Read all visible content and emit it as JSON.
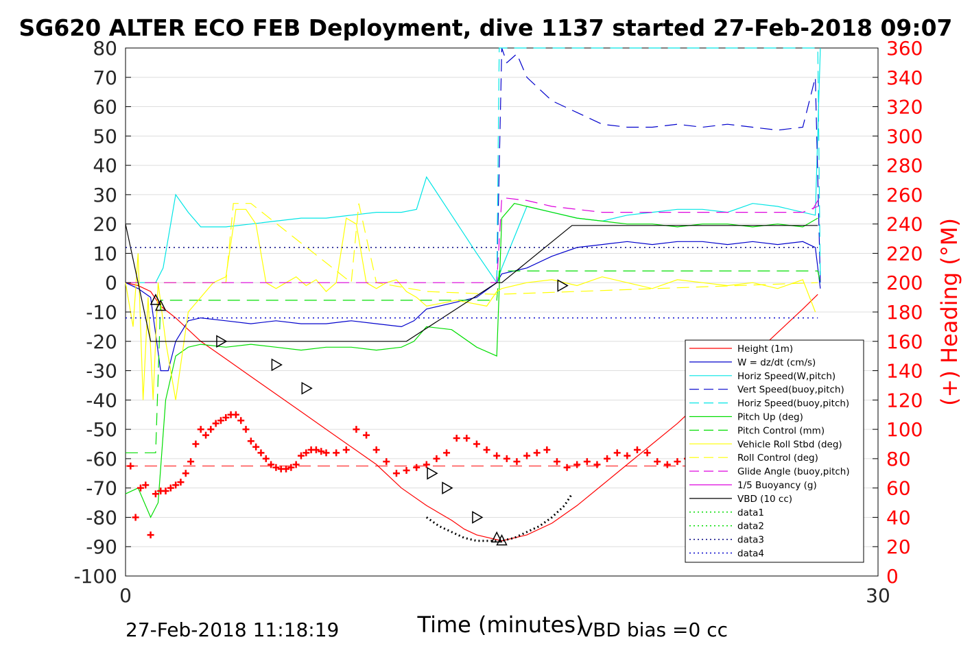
{
  "chart_data": {
    "type": "line",
    "title": "SG620 ALTER ECO FEB Deployment, dive 1137 started 27-Feb-2018 09:07",
    "xlabel": "Time (minutes)",
    "ylabel_right": "(+) Heading (°M)",
    "xlim": [
      0,
      30
    ],
    "ylim_left": [
      -100,
      80
    ],
    "ylim_right": [
      0,
      360
    ],
    "xticks": [
      "0",
      "30"
    ],
    "yticks_left": [
      "80",
      "70",
      "60",
      "50",
      "40",
      "30",
      "20",
      "10",
      "0",
      "-10",
      "-20",
      "-30",
      "-40",
      "-50",
      "-60",
      "-70",
      "-80",
      "-90",
      "-100"
    ],
    "yticks_right": [
      "360",
      "340",
      "320",
      "300",
      "280",
      "260",
      "240",
      "220",
      "200",
      "180",
      "160",
      "140",
      "120",
      "100",
      "80",
      "60",
      "40",
      "20",
      "0"
    ],
    "grid": true,
    "legend_position": "lower-right",
    "footer_left": "27-Feb-2018 11:18:19",
    "footer_right": "VBD bias =0 cc",
    "colors": {
      "right_axis": "#ff0000"
    },
    "legend": [
      {
        "label": "Height (1m)",
        "color": "#ff0000",
        "style": "solid"
      },
      {
        "label": "W = dz/dt (cm/s)",
        "color": "#0000cc",
        "style": "solid"
      },
      {
        "label": "Horiz Speed(W,pitch)",
        "color": "#00e5e5",
        "style": "solid"
      },
      {
        "label": "Vert Speed(buoy,pitch)",
        "color": "#0000cc",
        "style": "dashed"
      },
      {
        "label": "Horiz Speed(buoy,pitch)",
        "color": "#00e5e5",
        "style": "dashed"
      },
      {
        "label": "Pitch Up (deg)",
        "color": "#00dd00",
        "style": "solid"
      },
      {
        "label": "Pitch Control (mm)",
        "color": "#00dd00",
        "style": "dashed"
      },
      {
        "label": "Vehicle Roll Stbd (deg)",
        "color": "#ffff00",
        "style": "solid"
      },
      {
        "label": "Roll Control (deg)",
        "color": "#ffff00",
        "style": "dashed"
      },
      {
        "label": "Glide Angle (buoy,pitch)",
        "color": "#dd00dd",
        "style": "dashed"
      },
      {
        "label": "1/5 Buoyancy (g)",
        "color": "#dd00dd",
        "style": "solid"
      },
      {
        "label": "VBD (10 cc)",
        "color": "#000000",
        "style": "solid"
      },
      {
        "label": "data1",
        "color": "#00dd00",
        "style": "dotted"
      },
      {
        "label": "data2",
        "color": "#00dd00",
        "style": "dotted"
      },
      {
        "label": "data3",
        "color": "#000080",
        "style": "dotted"
      },
      {
        "label": "data4",
        "color": "#0000cc",
        "style": "dotted"
      }
    ],
    "series": [
      {
        "name": "Height (1m)",
        "axis": "left",
        "color": "#ff0000",
        "style": "solid",
        "x": [
          0,
          0.5,
          1.0,
          1.4,
          2.0,
          3.0,
          4.0,
          5.0,
          6.0,
          7.0,
          8.0,
          9.0,
          10.0,
          11.0,
          12.0,
          13.0,
          13.5,
          14.0,
          15.0,
          16.0,
          17.0,
          18.0,
          19.0,
          20.0,
          21.0,
          22.0,
          23.0,
          24.0,
          25.0,
          26.0,
          27.0,
          27.6
        ],
        "y": [
          0,
          -1,
          -3,
          -8,
          -12,
          -20,
          -26,
          -32,
          -38,
          -44,
          -50,
          -56,
          -62,
          -70,
          -76,
          -81,
          -84,
          -86,
          -88,
          -86,
          -82,
          -76,
          -69,
          -62,
          -55,
          -48,
          -40,
          -33,
          -25,
          -17,
          -9,
          -4
        ]
      },
      {
        "name": "W = dz/dt (cm/s)",
        "axis": "left",
        "color": "#0000cc",
        "style": "solid",
        "x": [
          0,
          0.5,
          1.0,
          1.4,
          1.7,
          2.0,
          2.5,
          3.0,
          4,
          5,
          6,
          7,
          8,
          9,
          10,
          11,
          11.5,
          12,
          13,
          14,
          14.8,
          15,
          16,
          17,
          18,
          19,
          20,
          21,
          22,
          23,
          24,
          25,
          26,
          27,
          27.5,
          27.7
        ],
        "y": [
          0,
          -2,
          -5,
          -30,
          -30,
          -20,
          -13,
          -12,
          -13,
          -14,
          -13,
          -14,
          -14,
          -13,
          -14,
          -15,
          -13,
          -9,
          -7,
          -5,
          0,
          3,
          5,
          9,
          12,
          13,
          14,
          13,
          14,
          14,
          13,
          14,
          13,
          14,
          12,
          -2
        ]
      },
      {
        "name": "Horiz Speed(W,pitch)",
        "axis": "left",
        "color": "#00e5e5",
        "style": "solid",
        "x": [
          0,
          0.8,
          1.2,
          1.5,
          1.8,
          2.0,
          2.5,
          3.0,
          4,
          5,
          6,
          7,
          8,
          9,
          10,
          11,
          11.6,
          12.0,
          13,
          14,
          14.8,
          15,
          16,
          17,
          18,
          19,
          20,
          21,
          22,
          23,
          24,
          25,
          26,
          27,
          27.5,
          27.7
        ],
        "y": [
          0,
          0,
          0,
          5,
          20,
          30,
          24,
          19,
          19,
          20,
          21,
          22,
          22,
          23,
          24,
          24,
          25,
          36,
          23,
          10,
          0,
          5,
          26,
          24,
          22,
          21,
          23,
          24,
          25,
          25,
          24,
          27,
          26,
          24,
          23,
          80
        ]
      },
      {
        "name": "Vert Speed(buoy,pitch)",
        "axis": "left",
        "color": "#0000cc",
        "style": "dashed",
        "x": [
          14.8,
          15.0,
          15.2,
          15.6,
          16,
          17,
          18,
          19,
          20,
          21,
          22,
          23,
          24,
          25,
          26,
          27,
          27.5,
          27.7
        ],
        "y": [
          0,
          80,
          75,
          78,
          70,
          62,
          58,
          54,
          53,
          53,
          54,
          53,
          54,
          53,
          52,
          53,
          70,
          0
        ]
      },
      {
        "name": "Horiz Speed(buoy,pitch)",
        "axis": "left",
        "color": "#00e5e5",
        "style": "dashed",
        "x": [
          14.8,
          14.9,
          15.0,
          27.6,
          27.7
        ],
        "y": [
          0,
          80,
          80,
          80,
          0
        ]
      },
      {
        "name": "Pitch Up (deg)",
        "axis": "left",
        "color": "#00dd00",
        "style": "solid",
        "x": [
          0,
          0.5,
          1.0,
          1.3,
          1.6,
          2.0,
          2.5,
          3.0,
          4,
          5,
          6,
          7,
          8,
          9,
          10,
          11,
          11.5,
          12,
          13,
          14,
          14.8,
          15,
          15.5,
          16,
          17,
          18,
          19,
          20,
          21,
          22,
          23,
          24,
          25,
          26,
          27,
          27.6
        ],
        "y": [
          -72,
          -70,
          -80,
          -75,
          -40,
          -25,
          -22,
          -21,
          -22,
          -21,
          -22,
          -23,
          -22,
          -22,
          -23,
          -22,
          -20,
          -15,
          -16,
          -22,
          -25,
          22,
          27,
          26,
          24,
          22,
          21,
          20,
          20,
          19,
          20,
          20,
          19,
          20,
          19,
          22
        ]
      },
      {
        "name": "Pitch Control (mm)",
        "axis": "left",
        "color": "#00dd00",
        "style": "dashed",
        "x": [
          0,
          1.0,
          1.2,
          1.4,
          14.8,
          14.9,
          27.6,
          27.7
        ],
        "y": [
          -58,
          -58,
          -58,
          -6,
          -6,
          4,
          4,
          0
        ]
      },
      {
        "name": "Vehicle Roll Stbd (deg)",
        "axis": "left",
        "color": "#ffff00",
        "style": "solid",
        "x": [
          0,
          0.3,
          0.5,
          0.7,
          0.9,
          1.1,
          1.3,
          1.6,
          2.0,
          2.5,
          3.0,
          3.5,
          4,
          4.4,
          4.8,
          5.2,
          5.6,
          6.0,
          6.4,
          6.8,
          7.2,
          7.6,
          8,
          8.4,
          8.8,
          9.2,
          9.6,
          10,
          10.4,
          10.8,
          11.2,
          11.6,
          12,
          12.6,
          13.2,
          13.8,
          14.4,
          14.8,
          15,
          16,
          17,
          18,
          19,
          20,
          21,
          22,
          23,
          24,
          25,
          26,
          27,
          27.5
        ],
        "y": [
          0,
          -15,
          10,
          -40,
          -5,
          -40,
          0,
          -20,
          -40,
          -10,
          -5,
          0,
          2,
          25,
          25,
          20,
          0,
          -2,
          0,
          2,
          -1,
          1,
          -3,
          0,
          22,
          20,
          0,
          -2,
          0,
          1,
          -3,
          -5,
          -8,
          -7,
          -6,
          -7,
          -8,
          -3,
          -2,
          0,
          1,
          -1,
          2,
          0,
          -2,
          1,
          0,
          -1,
          0,
          -2,
          1,
          -10
        ]
      },
      {
        "name": "Roll Control (deg)",
        "axis": "left",
        "color": "#ffff00",
        "style": "dashed",
        "x": [
          0,
          1.5,
          4.0,
          4.3,
          5.0,
          9.0,
          9.3,
          10.0,
          12,
          14.8,
          27.6
        ],
        "y": [
          0,
          0,
          0,
          27,
          27,
          0,
          27,
          0,
          -3,
          -4,
          0
        ]
      },
      {
        "name": "Glide Angle (buoy,pitch)",
        "axis": "left",
        "color": "#dd00dd",
        "style": "dashed",
        "x": [
          0,
          14.8,
          15.0,
          16,
          17,
          18,
          19,
          20,
          21,
          22,
          23,
          24,
          25,
          26,
          27,
          27.6
        ],
        "y": [
          0,
          0,
          29,
          28,
          26,
          25,
          24,
          24,
          24,
          24,
          24,
          24,
          24,
          24,
          24,
          26
        ]
      },
      {
        "name": "1/5 Buoyancy (g)",
        "axis": "left",
        "color": "#dd00dd",
        "style": "solid",
        "x": [
          27.4,
          27.6
        ],
        "y": [
          25,
          28
        ]
      },
      {
        "name": "VBD (10 cc)",
        "axis": "left",
        "color": "#000000",
        "style": "solid",
        "x": [
          0,
          1.0,
          1.2,
          11.2,
          14.8,
          15.0,
          17.8,
          27.6
        ],
        "y": [
          20,
          -20,
          -20,
          -20,
          0,
          0,
          19.5,
          19.5
        ]
      },
      {
        "name": "data3",
        "axis": "left",
        "color": "#000080",
        "style": "dotted",
        "x": [
          0,
          27.6
        ],
        "y": [
          12,
          12
        ]
      },
      {
        "name": "data4",
        "axis": "left",
        "color": "#0000cc",
        "style": "dotted",
        "x": [
          0,
          27.6
        ],
        "y": [
          -12,
          -12
        ]
      },
      {
        "name": "Heading",
        "axis": "right",
        "color": "#ff0000",
        "style": "markers",
        "x": [
          0.2,
          0.4,
          0.6,
          0.8,
          1.0,
          1.2,
          1.4,
          1.6,
          1.8,
          2.0,
          2.2,
          2.4,
          2.6,
          2.8,
          3.0,
          3.2,
          3.4,
          3.6,
          3.8,
          4.0,
          4.2,
          4.4,
          4.6,
          4.8,
          5.0,
          5.2,
          5.4,
          5.6,
          5.8,
          6.0,
          6.2,
          6.4,
          6.6,
          6.8,
          7.0,
          7.2,
          7.4,
          7.6,
          7.8,
          8.0,
          8.4,
          8.8,
          9.2,
          9.6,
          10.0,
          10.4,
          10.8,
          11.2,
          11.6,
          12.0,
          12.4,
          12.8,
          13.2,
          13.6,
          14.0,
          14.4,
          14.8,
          15.2,
          15.6,
          16.0,
          16.4,
          16.8,
          17.2,
          17.6,
          18.0,
          18.4,
          18.8,
          19.2,
          19.6,
          20.0,
          20.4,
          20.8,
          21.2,
          21.6,
          22.0,
          22.4,
          22.8,
          23.2,
          23.6,
          24.0,
          24.4,
          24.8,
          25.2,
          25.6,
          26.0,
          26.4,
          26.8,
          27.2
        ],
        "y": [
          75,
          40,
          60,
          62,
          28,
          56,
          58,
          58,
          60,
          62,
          64,
          70,
          78,
          90,
          100,
          96,
          100,
          104,
          106,
          108,
          110,
          110,
          106,
          100,
          92,
          88,
          84,
          80,
          76,
          74,
          73,
          73,
          74,
          76,
          82,
          84,
          86,
          86,
          85,
          84,
          84,
          86,
          100,
          96,
          86,
          78,
          70,
          72,
          74,
          76,
          80,
          84,
          94,
          94,
          90,
          86,
          82,
          80,
          78,
          82,
          84,
          86,
          78,
          74,
          76,
          78,
          76,
          80,
          84,
          82,
          86,
          84,
          78,
          76,
          78,
          80,
          80,
          82,
          80,
          76,
          74,
          76,
          72,
          70,
          76,
          74,
          70,
          72
        ]
      }
    ],
    "markers_right_triangles": [
      {
        "x": 3.8,
        "y": -20
      },
      {
        "x": 6.0,
        "y": -28
      },
      {
        "x": 7.2,
        "y": -36
      },
      {
        "x": 12.2,
        "y": -65
      },
      {
        "x": 12.8,
        "y": -70
      },
      {
        "x": 14.0,
        "y": -80
      },
      {
        "x": 17.4,
        "y": -1
      }
    ],
    "markers_up_triangles": [
      {
        "x": 1.2,
        "y": -6
      },
      {
        "x": 1.4,
        "y": -8
      },
      {
        "x": 14.8,
        "y": -87
      },
      {
        "x": 15.0,
        "y": -88
      }
    ],
    "dotted_black_segment": {
      "x": [
        12.0,
        12.5,
        13.0,
        13.5,
        14.0,
        14.5,
        15.0,
        15.5,
        16.0,
        16.5,
        17.0,
        17.5,
        17.8
      ],
      "y": [
        -80,
        -83,
        -85,
        -87,
        -88,
        -88,
        -88,
        -87,
        -85,
        -83,
        -80,
        -76,
        -72
      ]
    }
  }
}
